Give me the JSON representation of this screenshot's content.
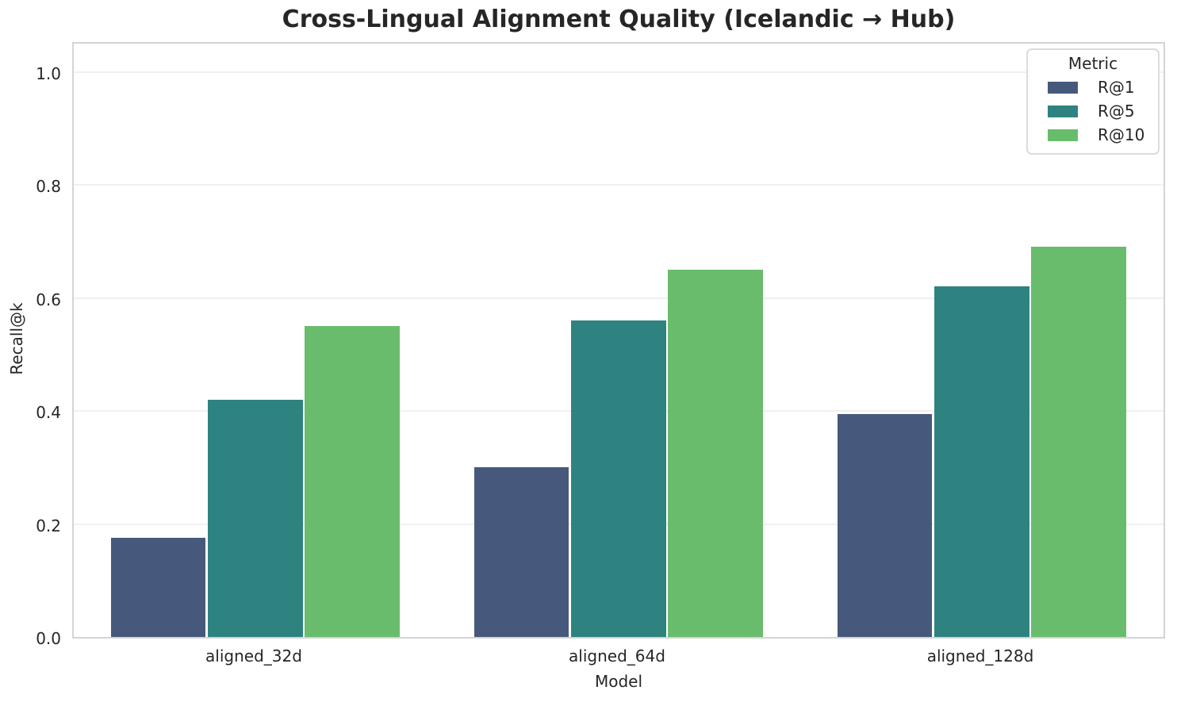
{
  "chart_data": {
    "type": "bar",
    "title": "Cross-Lingual Alignment Quality (Icelandic → Hub)",
    "xlabel": "Model",
    "ylabel": "Recall@k",
    "categories": [
      "aligned_32d",
      "aligned_64d",
      "aligned_128d"
    ],
    "series": [
      {
        "name": "R@1",
        "color": "#46597d",
        "values": [
          0.175,
          0.3,
          0.395
        ]
      },
      {
        "name": "R@5",
        "color": "#2e8380",
        "values": [
          0.42,
          0.56,
          0.62
        ]
      },
      {
        "name": "R@10",
        "color": "#6abc6d",
        "values": [
          0.55,
          0.65,
          0.69
        ]
      }
    ],
    "ylim": [
      0,
      1.05
    ],
    "yticks": [
      0.0,
      0.2,
      0.4,
      0.6,
      0.8,
      1.0
    ],
    "ytick_labels": [
      "0.0",
      "0.2",
      "0.4",
      "0.6",
      "0.8",
      "1.0"
    ],
    "legend_title": "Metric",
    "legend_position": "upper right",
    "grid": "horizontal",
    "grid_color": "#f0f0f0",
    "spine_color": "#d4d4d4",
    "background_color": "#ffffff",
    "bar_group_width_fraction": 0.8
  }
}
